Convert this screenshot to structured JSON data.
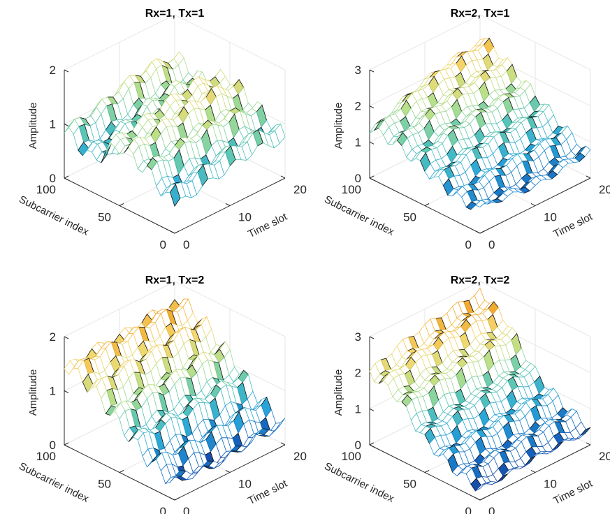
{
  "chart_data": [
    {
      "type": "surface",
      "title": "Rx=1, Tx=1",
      "xlabel": "Subcarrier index",
      "ylabel": "Time slot",
      "zlabel": "Amplitude",
      "xlim": [
        0,
        100
      ],
      "ylim": [
        0,
        20
      ],
      "zlim": [
        0,
        2
      ],
      "xticks": [
        0,
        50,
        100
      ],
      "yticks": [
        0,
        10,
        20
      ],
      "zticks": [
        0,
        1,
        2
      ],
      "grid": true,
      "description_points": {
        "subcarrier": [
          0,
          25,
          50,
          75,
          100
        ],
        "time_slot": [
          0,
          5,
          10,
          15,
          20
        ],
        "amplitude": [
          [
            0.5,
            0.9,
            1.1,
            0.6,
            0.9
          ],
          [
            0.6,
            1.0,
            1.2,
            0.7,
            1.0
          ],
          [
            0.7,
            1.1,
            1.3,
            0.9,
            1.2
          ],
          [
            0.8,
            1.1,
            1.4,
            1.0,
            1.3
          ],
          [
            0.7,
            1.0,
            1.3,
            1.0,
            1.2
          ]
        ]
      }
    },
    {
      "type": "surface",
      "title": "Rx=2, Tx=1",
      "xlabel": "Subcarrier index",
      "ylabel": "Time slot",
      "zlabel": "Amplitude",
      "xlim": [
        0,
        100
      ],
      "ylim": [
        0,
        20
      ],
      "zlim": [
        0,
        3
      ],
      "xticks": [
        0,
        50,
        100
      ],
      "yticks": [
        0,
        10,
        20
      ],
      "zticks": [
        0,
        1,
        2,
        3
      ],
      "grid": true,
      "description_points": {
        "subcarrier": [
          0,
          25,
          50,
          75,
          100
        ],
        "time_slot": [
          0,
          5,
          10,
          15,
          20
        ],
        "amplitude": [
          [
            0.6,
            0.7,
            1.0,
            1.3,
            1.4
          ],
          [
            0.5,
            0.8,
            1.3,
            1.6,
            1.8
          ],
          [
            0.4,
            0.9,
            1.4,
            1.8,
            2.1
          ],
          [
            0.5,
            0.9,
            1.4,
            1.9,
            2.3
          ],
          [
            0.6,
            1.0,
            1.5,
            2.0,
            2.4
          ]
        ]
      }
    },
    {
      "type": "surface",
      "title": "Rx=1, Tx=2",
      "xlabel": "Subcarrier index",
      "ylabel": "Time slot",
      "zlabel": "Amplitude",
      "xlim": [
        0,
        100
      ],
      "ylim": [
        0,
        20
      ],
      "zlim": [
        0,
        2
      ],
      "xticks": [
        0,
        50,
        100
      ],
      "yticks": [
        0,
        10,
        20
      ],
      "zticks": [
        0,
        1,
        2
      ],
      "grid": true,
      "description_points": {
        "subcarrier": [
          0,
          25,
          50,
          75,
          100
        ],
        "time_slot": [
          0,
          5,
          10,
          15,
          20
        ],
        "amplitude": [
          [
            0.3,
            0.5,
            0.9,
            1.3,
            1.5
          ],
          [
            0.2,
            0.5,
            1.0,
            1.4,
            1.6
          ],
          [
            0.2,
            0.5,
            1.0,
            1.4,
            1.6
          ],
          [
            0.3,
            0.6,
            1.1,
            1.5,
            1.7
          ],
          [
            0.3,
            0.6,
            1.1,
            1.5,
            1.7
          ]
        ]
      }
    },
    {
      "type": "surface",
      "title": "Rx=2, Tx=2",
      "xlabel": "Subcarrier index",
      "ylabel": "Time slot",
      "zlabel": "Amplitude",
      "xlim": [
        0,
        100
      ],
      "ylim": [
        0,
        20
      ],
      "zlim": [
        0,
        3
      ],
      "xticks": [
        0,
        50,
        100
      ],
      "yticks": [
        0,
        10,
        20
      ],
      "zticks": [
        0,
        1,
        2,
        3
      ],
      "grid": true,
      "description_points": {
        "subcarrier": [
          0,
          25,
          50,
          75,
          100
        ],
        "time_slot": [
          0,
          5,
          10,
          15,
          20
        ],
        "amplitude": [
          [
            0.3,
            0.5,
            0.9,
            1.7,
            2.0
          ],
          [
            0.3,
            0.6,
            1.0,
            1.9,
            2.3
          ],
          [
            0.4,
            0.6,
            1.1,
            2.0,
            2.5
          ],
          [
            0.4,
            0.7,
            1.2,
            2.1,
            2.6
          ],
          [
            0.4,
            0.7,
            1.2,
            2.2,
            2.7
          ]
        ]
      }
    }
  ],
  "colormap": [
    "#1a237e",
    "#1565c0",
    "#29a6d9",
    "#5cc7b4",
    "#b8e08a",
    "#f5d76e",
    "#f0a020"
  ]
}
